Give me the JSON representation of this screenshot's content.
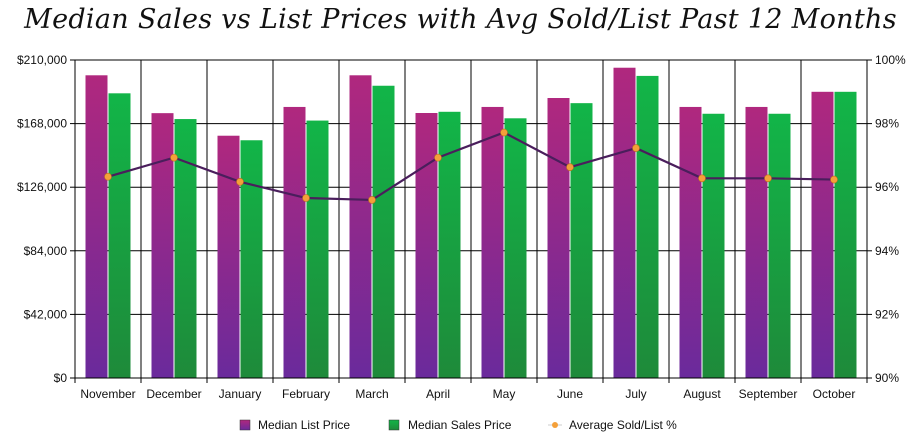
{
  "chart_data": {
    "type": "bar",
    "title": "Median Sales vs List Prices with Avg Sold/List Past 12 Months",
    "categories": [
      "November",
      "December",
      "January",
      "February",
      "March",
      "April",
      "May",
      "June",
      "July",
      "August",
      "September",
      "October"
    ],
    "series": [
      {
        "name": "Median List Price",
        "kind": "bar",
        "axis": "left",
        "values": [
          199900,
          174900,
          160000,
          179000,
          199900,
          175000,
          179000,
          184900,
          204900,
          179000,
          179000,
          189000
        ]
      },
      {
        "name": "Median Sales Price",
        "kind": "bar",
        "axis": "left",
        "values": [
          188000,
          171000,
          157000,
          170000,
          193000,
          175800,
          171500,
          181500,
          199500,
          174500,
          174500,
          189000
        ]
      },
      {
        "name": "Average Sold/List %",
        "kind": "line",
        "axis": "right",
        "values": [
          96.33,
          96.93,
          96.17,
          95.66,
          95.6,
          96.93,
          97.72,
          96.63,
          97.23,
          96.28,
          96.28,
          96.24
        ]
      }
    ],
    "y_left": {
      "ylim": [
        0,
        210000
      ],
      "ticks": [
        "$0",
        "$42,000",
        "$84,000",
        "$126,000",
        "$168,000",
        "$210,000"
      ],
      "tick_values": [
        0,
        42000,
        84000,
        126000,
        168000,
        210000
      ]
    },
    "y_right": {
      "ylim": [
        90,
        100
      ],
      "ticks": [
        "90%",
        "92%",
        "94%",
        "96%",
        "98%",
        "100%"
      ],
      "tick_values": [
        90,
        92,
        94,
        96,
        98,
        100
      ]
    },
    "grid": true,
    "legend_position": "bottom",
    "colors": {
      "list_bar_top": "#b0287e",
      "list_bar_bottom": "#6a2a9c",
      "sales_bar_top": "#12b548",
      "sales_bar_bottom": "#1e8a3a",
      "line": "#4a1e5c",
      "marker": "#f4a03a"
    }
  }
}
